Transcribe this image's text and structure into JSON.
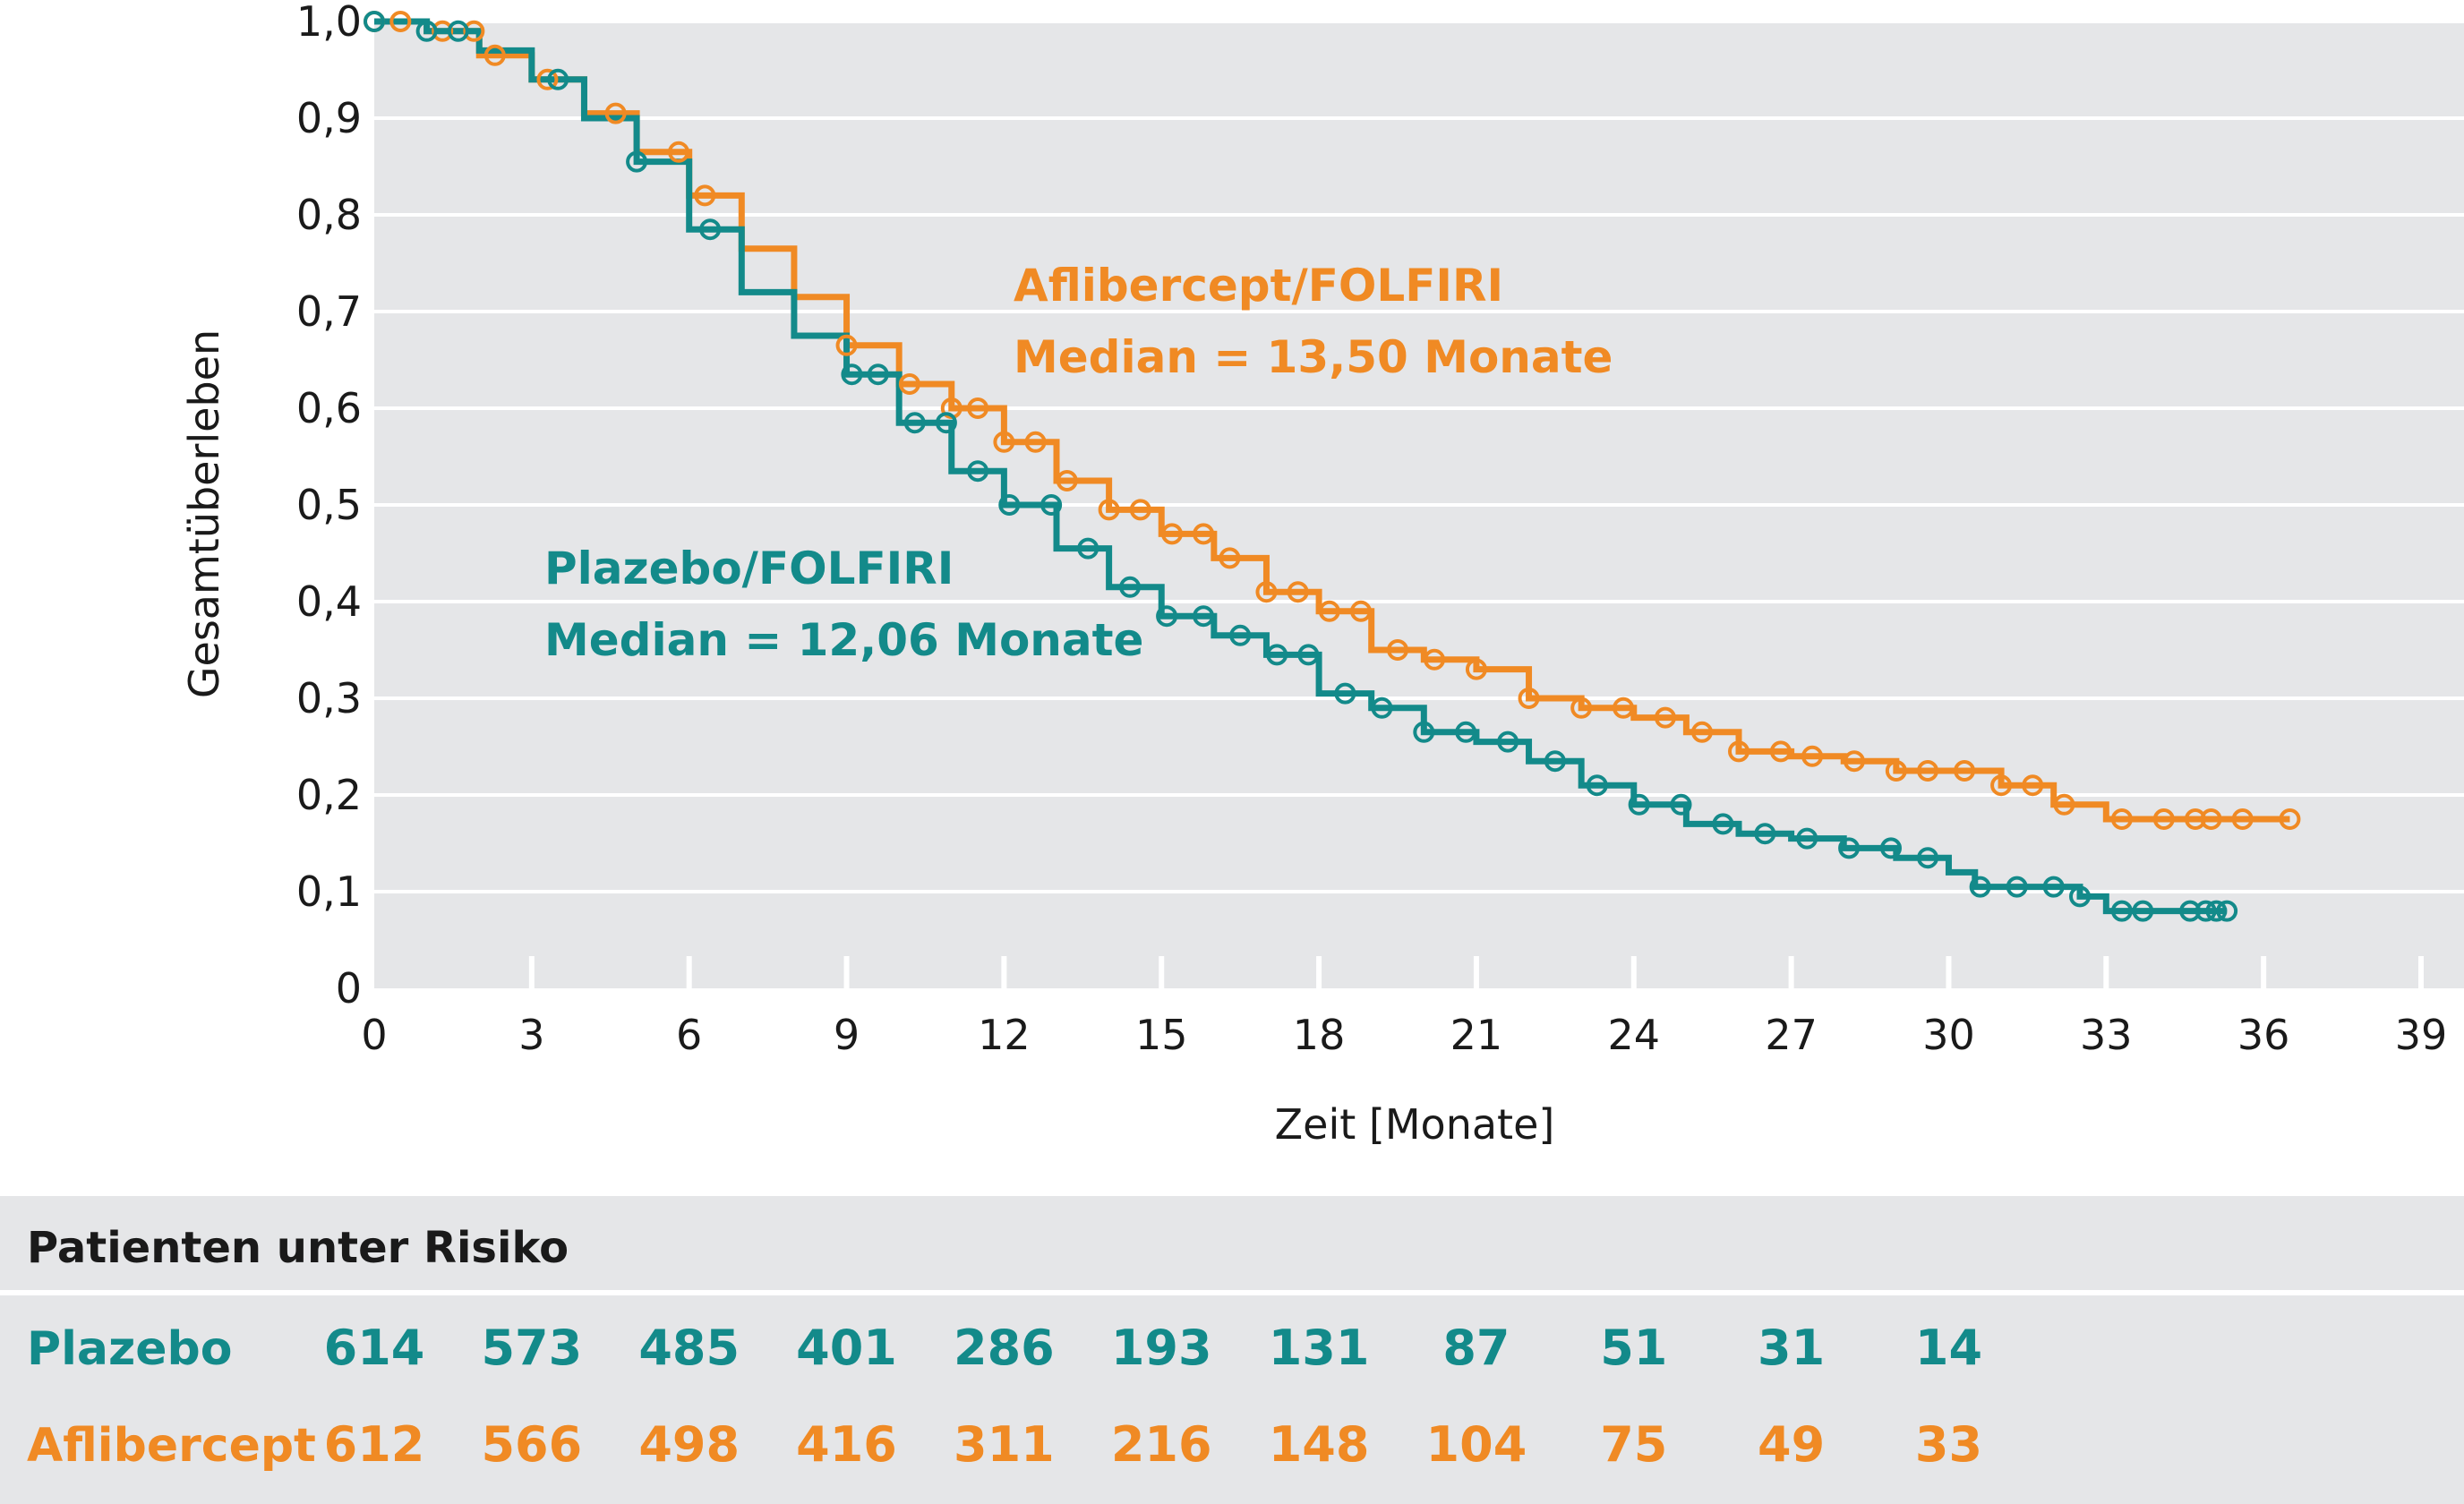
{
  "chart_data": {
    "type": "line",
    "subtype": "kaplan-meier",
    "title": "",
    "xlabel": "Zeit [Monate]",
    "ylabel": "Gesamtüberleben",
    "xlim": [
      0,
      39
    ],
    "ylim": [
      0,
      1
    ],
    "x_ticks": [
      0,
      3,
      6,
      9,
      12,
      15,
      18,
      21,
      24,
      27,
      30,
      33,
      36,
      39
    ],
    "y_tick_labels": [
      "0",
      "0,1",
      "0,2",
      "0,3",
      "0,4",
      "0,5",
      "0,6",
      "0,7",
      "0,8",
      "0,9",
      "1,0"
    ],
    "y_ticks": [
      0,
      0.1,
      0.2,
      0.3,
      0.4,
      0.5,
      0.6,
      0.7,
      0.8,
      0.9,
      1.0
    ],
    "grid": true,
    "series": [
      {
        "name": "Aflibercept/FOLFIRI",
        "color": "#f08a24",
        "points": [
          [
            0,
            1.0
          ],
          [
            1,
            0.99
          ],
          [
            2,
            0.965
          ],
          [
            3,
            0.94
          ],
          [
            4,
            0.905
          ],
          [
            5,
            0.865
          ],
          [
            6,
            0.82
          ],
          [
            7,
            0.765
          ],
          [
            8,
            0.715
          ],
          [
            9,
            0.665
          ],
          [
            10,
            0.625
          ],
          [
            11,
            0.6
          ],
          [
            12,
            0.565
          ],
          [
            13,
            0.525
          ],
          [
            14,
            0.495
          ],
          [
            15,
            0.47
          ],
          [
            16,
            0.445
          ],
          [
            17,
            0.41
          ],
          [
            18,
            0.39
          ],
          [
            19,
            0.35
          ],
          [
            20,
            0.34
          ],
          [
            21,
            0.33
          ],
          [
            22,
            0.3
          ],
          [
            23,
            0.29
          ],
          [
            24,
            0.28
          ],
          [
            25,
            0.265
          ],
          [
            26,
            0.245
          ],
          [
            27,
            0.24
          ],
          [
            28,
            0.235
          ],
          [
            29,
            0.225
          ],
          [
            30,
            0.225
          ],
          [
            31,
            0.21
          ],
          [
            32,
            0.19
          ],
          [
            32.5,
            0.19
          ],
          [
            33,
            0.175
          ],
          [
            36.5,
            0.175
          ]
        ],
        "censored_x": [
          0,
          0.5,
          1.3,
          1.9,
          2.3,
          3.3,
          4.6,
          5.8,
          6.3,
          9,
          10.2,
          11,
          11.5,
          12,
          12.6,
          13.2,
          14,
          14.6,
          15.2,
          15.8,
          16.3,
          17,
          17.6,
          18.2,
          18.8,
          19.5,
          20.2,
          21,
          22,
          23,
          23.8,
          24.6,
          25.3,
          26,
          26.8,
          27.4,
          28.2,
          29,
          29.6,
          30.3,
          31,
          31.6,
          32.2,
          33.3,
          34.1,
          34.7,
          35,
          35.6,
          36.5
        ],
        "median": "13,50 Monate"
      },
      {
        "name": "Plazebo/FOLFIRI",
        "color": "#138a8a",
        "points": [
          [
            0,
            1.0
          ],
          [
            1,
            0.99
          ],
          [
            2,
            0.97
          ],
          [
            3,
            0.94
          ],
          [
            4,
            0.9
          ],
          [
            5,
            0.855
          ],
          [
            6,
            0.785
          ],
          [
            7,
            0.72
          ],
          [
            8,
            0.675
          ],
          [
            9,
            0.635
          ],
          [
            10,
            0.585
          ],
          [
            11,
            0.535
          ],
          [
            12,
            0.5
          ],
          [
            13,
            0.455
          ],
          [
            14,
            0.415
          ],
          [
            15,
            0.385
          ],
          [
            16,
            0.365
          ],
          [
            17,
            0.345
          ],
          [
            18,
            0.305
          ],
          [
            19,
            0.29
          ],
          [
            20,
            0.265
          ],
          [
            21,
            0.255
          ],
          [
            22,
            0.235
          ],
          [
            23,
            0.21
          ],
          [
            24,
            0.19
          ],
          [
            25,
            0.17
          ],
          [
            26,
            0.16
          ],
          [
            27,
            0.155
          ],
          [
            28,
            0.145
          ],
          [
            29,
            0.135
          ],
          [
            30,
            0.12
          ],
          [
            30.5,
            0.105
          ],
          [
            32,
            0.105
          ],
          [
            32.5,
            0.095
          ],
          [
            33,
            0.08
          ],
          [
            35.3,
            0.08
          ]
        ],
        "censored_x": [
          0,
          1,
          1.6,
          3.5,
          5,
          6.4,
          9.1,
          9.6,
          10.3,
          10.9,
          11.5,
          12.1,
          12.9,
          13.6,
          14.4,
          15.1,
          15.8,
          16.5,
          17.2,
          17.8,
          18.5,
          19.2,
          20,
          20.8,
          21.6,
          22.5,
          23.3,
          24.1,
          24.9,
          25.7,
          26.5,
          27.3,
          28.1,
          28.9,
          29.6,
          30.6,
          31.3,
          32,
          32.5,
          33.3,
          33.7,
          34.6,
          34.9,
          35.1,
          35.3
        ],
        "median": "12,06 Monate"
      }
    ],
    "annotations": [
      {
        "series": "Aflibercept/FOLFIRI",
        "line1": "Aflibercept/FOLFIRI",
        "line2": "Median = 13,50 Monate",
        "color": "#f08a24"
      },
      {
        "series": "Plazebo/FOLFIRI",
        "line1": "Plazebo/FOLFIRI",
        "line2": "Median = 12,06 Monate",
        "color": "#138a8a"
      }
    ]
  },
  "risk_table": {
    "title": "Patienten unter Risiko",
    "rows": [
      {
        "label": "Plazebo",
        "color": "#138a8a",
        "values": [
          "614",
          "573",
          "485",
          "401",
          "286",
          "193",
          "131",
          "87",
          "51",
          "31",
          "14"
        ]
      },
      {
        "label": "Aflibercept",
        "color": "#f08a24",
        "values": [
          "612",
          "566",
          "498",
          "416",
          "311",
          "216",
          "148",
          "104",
          "75",
          "49",
          "33"
        ]
      }
    ]
  },
  "colors": {
    "plot_background": "#e5e6e8",
    "grid": "#ffffff",
    "table_background": "#e5e6e8"
  }
}
